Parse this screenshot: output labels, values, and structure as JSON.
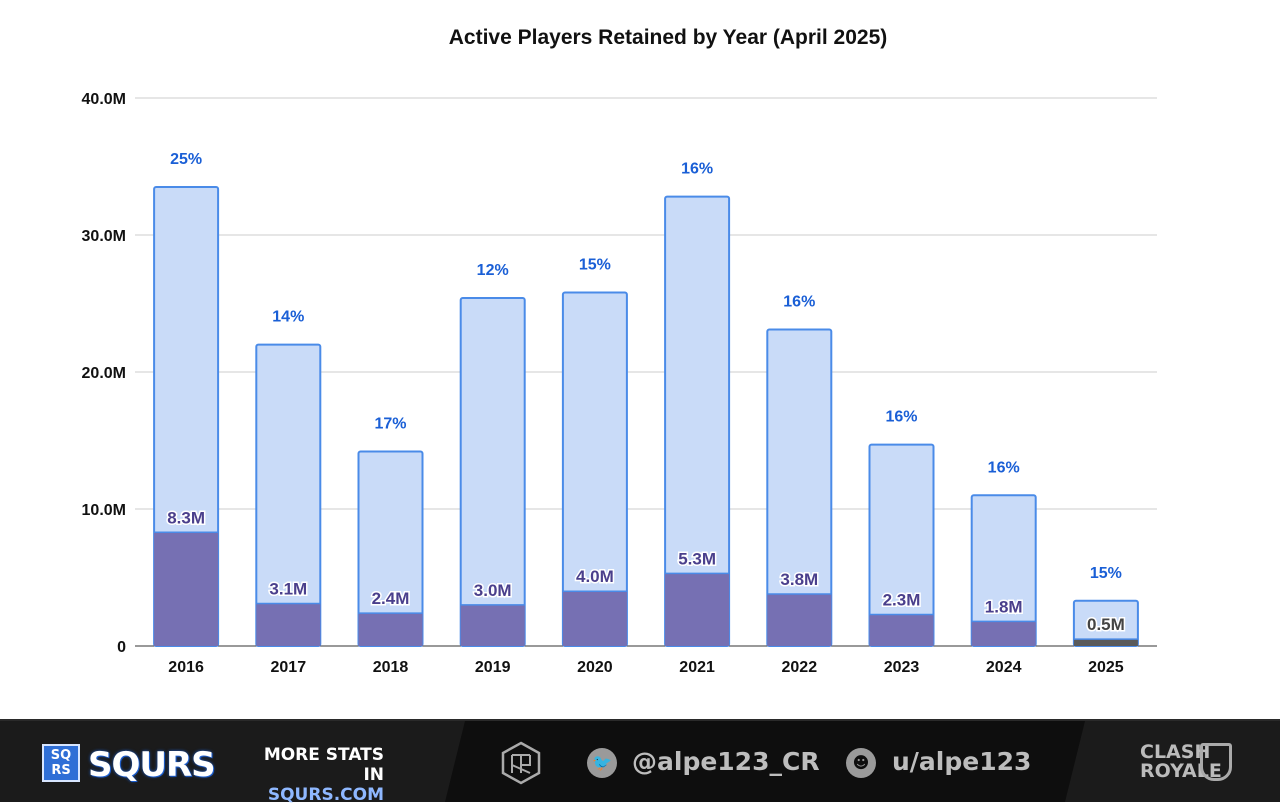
{
  "chart_data": {
    "type": "bar",
    "title": "Active Players Retained by Year (April 2025)",
    "xlabel": "",
    "ylabel": "",
    "ylim": [
      0,
      40
    ],
    "y_ticks": [
      "0",
      "10.0M",
      "20.0M",
      "30.0M",
      "40.0M"
    ],
    "y_tick_values": [
      0,
      10,
      20,
      30,
      40
    ],
    "grid": true,
    "categories": [
      "2016",
      "2017",
      "2018",
      "2019",
      "2020",
      "2021",
      "2022",
      "2023",
      "2024",
      "2025"
    ],
    "series": [
      {
        "values": [
          33.5,
          22.0,
          14.2,
          25.4,
          25.8,
          32.8,
          23.1,
          14.7,
          11.0,
          3.3
        ],
        "color": "#c9dbf8",
        "stroke": "#4a8be8"
      },
      {
        "values": [
          8.3,
          3.1,
          2.4,
          3.0,
          4.0,
          5.3,
          3.8,
          2.3,
          1.8,
          0.5
        ],
        "color": "#7670b3"
      }
    ],
    "retained_labels": [
      "8.3M",
      "3.1M",
      "2.4M",
      "3.0M",
      "4.0M",
      "5.3M",
      "3.8M",
      "2.3M",
      "1.8M",
      "0.5M"
    ],
    "percent_labels": [
      "25%",
      "14%",
      "17%",
      "12%",
      "15%",
      "16%",
      "16%",
      "16%",
      "16%",
      "15%"
    ],
    "last_retained_color": "#5a5a5a",
    "percent_color": "#1a5fd6"
  },
  "footer": {
    "logo_letters": "SQ RS",
    "brand": "SQURS",
    "more_line1": "MORE STATS IN",
    "more_line2": "SQURS.COM",
    "twitter": "@alpe123_CR",
    "reddit": "u/alpe123",
    "game_logo": "CLASH ROYALE"
  }
}
